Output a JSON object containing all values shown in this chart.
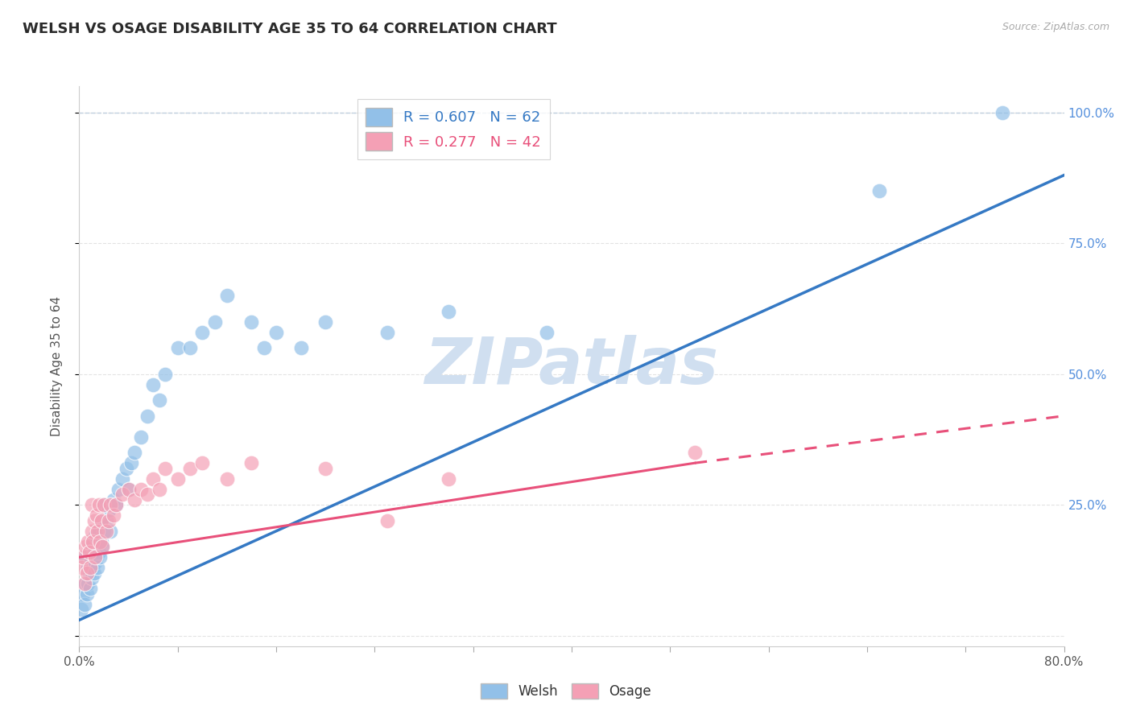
{
  "title": "WELSH VS OSAGE DISABILITY AGE 35 TO 64 CORRELATION CHART",
  "source": "Source: ZipAtlas.com",
  "xlim": [
    0.0,
    0.8
  ],
  "ylim": [
    -0.02,
    1.05
  ],
  "welsh_R": 0.607,
  "welsh_N": 62,
  "osage_R": 0.277,
  "osage_N": 42,
  "welsh_color": "#92C0E8",
  "osage_color": "#F4A0B5",
  "welsh_line_color": "#3579C4",
  "osage_line_color": "#E8507A",
  "grid_color": "#DDDDDD",
  "dashed_line_color": "#BBCCDD",
  "watermark": "ZIPatlas",
  "watermark_color": "#D0DFF0",
  "background_color": "#FFFFFF",
  "tick_color": "#5590DD",
  "welsh_scatter_x": [
    0.002,
    0.003,
    0.004,
    0.005,
    0.005,
    0.006,
    0.007,
    0.007,
    0.008,
    0.008,
    0.009,
    0.009,
    0.01,
    0.01,
    0.011,
    0.011,
    0.012,
    0.012,
    0.013,
    0.013,
    0.014,
    0.015,
    0.015,
    0.016,
    0.016,
    0.017,
    0.018,
    0.018,
    0.019,
    0.02,
    0.02,
    0.022,
    0.024,
    0.025,
    0.028,
    0.03,
    0.032,
    0.035,
    0.038,
    0.04,
    0.042,
    0.045,
    0.05,
    0.055,
    0.06,
    0.065,
    0.07,
    0.08,
    0.09,
    0.1,
    0.11,
    0.12,
    0.14,
    0.15,
    0.16,
    0.18,
    0.2,
    0.25,
    0.3,
    0.38,
    0.65,
    0.75
  ],
  "welsh_scatter_y": [
    0.05,
    0.08,
    0.06,
    0.1,
    0.15,
    0.08,
    0.1,
    0.13,
    0.12,
    0.16,
    0.09,
    0.14,
    0.11,
    0.17,
    0.13,
    0.18,
    0.12,
    0.16,
    0.14,
    0.19,
    0.15,
    0.13,
    0.18,
    0.16,
    0.2,
    0.15,
    0.18,
    0.22,
    0.17,
    0.2,
    0.25,
    0.22,
    0.24,
    0.2,
    0.26,
    0.25,
    0.28,
    0.3,
    0.32,
    0.28,
    0.33,
    0.35,
    0.38,
    0.42,
    0.48,
    0.45,
    0.5,
    0.55,
    0.55,
    0.58,
    0.6,
    0.65,
    0.6,
    0.55,
    0.58,
    0.55,
    0.6,
    0.58,
    0.62,
    0.58,
    0.85,
    1.0
  ],
  "osage_scatter_x": [
    0.002,
    0.003,
    0.004,
    0.005,
    0.006,
    0.007,
    0.008,
    0.009,
    0.01,
    0.01,
    0.011,
    0.012,
    0.013,
    0.014,
    0.015,
    0.016,
    0.017,
    0.018,
    0.019,
    0.02,
    0.022,
    0.024,
    0.025,
    0.028,
    0.03,
    0.035,
    0.04,
    0.045,
    0.05,
    0.055,
    0.06,
    0.065,
    0.07,
    0.08,
    0.09,
    0.1,
    0.12,
    0.14,
    0.2,
    0.25,
    0.3,
    0.5
  ],
  "osage_scatter_y": [
    0.13,
    0.15,
    0.1,
    0.17,
    0.12,
    0.18,
    0.16,
    0.13,
    0.2,
    0.25,
    0.18,
    0.22,
    0.15,
    0.23,
    0.2,
    0.25,
    0.18,
    0.22,
    0.17,
    0.25,
    0.2,
    0.22,
    0.25,
    0.23,
    0.25,
    0.27,
    0.28,
    0.26,
    0.28,
    0.27,
    0.3,
    0.28,
    0.32,
    0.3,
    0.32,
    0.33,
    0.3,
    0.33,
    0.32,
    0.22,
    0.3,
    0.35
  ],
  "welsh_line_x0": 0.0,
  "welsh_line_y0": 0.03,
  "welsh_line_x1": 0.8,
  "welsh_line_y1": 0.88,
  "osage_line_x0": 0.0,
  "osage_line_y0": 0.15,
  "osage_line_x1_solid": 0.5,
  "osage_line_y1_solid": 0.33,
  "osage_line_x1_dashed": 0.8,
  "osage_line_y1_dashed": 0.42
}
